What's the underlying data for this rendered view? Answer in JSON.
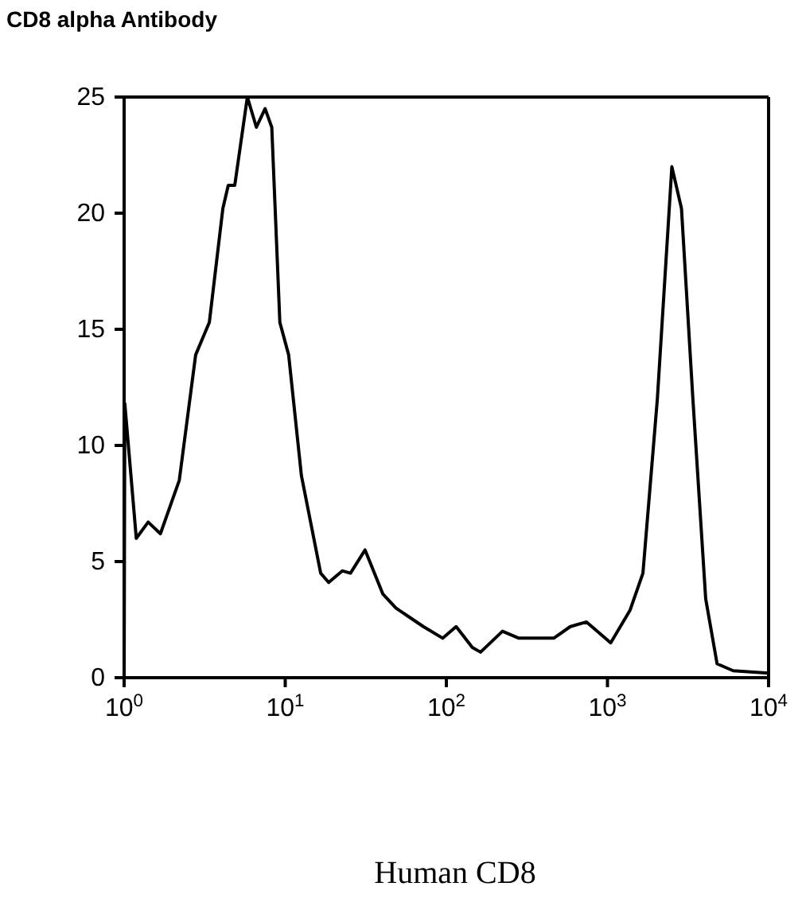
{
  "chart_data": {
    "type": "line",
    "title": "CD8 alpha Antibody",
    "xlabel": "Human CD8",
    "log": "x",
    "marker": "none",
    "line_style": "solid",
    "xlim": [
      1,
      10000
    ],
    "xticks": [
      {
        "value": 1,
        "label": "10$^{0}$"
      },
      {
        "value": 10,
        "label": "10$^{1}$"
      },
      {
        "value": 100,
        "label": "10$^{2}$"
      },
      {
        "value": 1000,
        "label": "10$^{3}$"
      },
      {
        "value": 10000,
        "label": "10$^{4}$"
      }
    ],
    "ylim": [
      0,
      25
    ],
    "yticks": [
      0,
      5,
      10,
      15,
      20,
      25
    ],
    "series": [
      {
        "color": "#000000",
        "x": [
          1,
          1.01,
          1.19,
          1.41,
          1.68,
          2.2,
          2.78,
          3.38,
          4.1,
          4.43,
          4.86,
          5.82,
          6.62,
          7.5,
          8.25,
          9.26,
          10.5,
          12.6,
          16.6,
          18.6,
          22.6,
          25.4,
          31.3,
          40.4,
          48.6,
          72,
          95,
          115,
          145,
          163,
          223,
          282,
          464,
          588,
          741,
          1047,
          1380,
          1660,
          2040,
          2510,
          2880,
          3390,
          4070,
          4790,
          6030,
          10000
        ],
        "values": [
          0,
          11.8,
          6.0,
          6.7,
          6.2,
          8.5,
          13.9,
          15.3,
          20.2,
          21.2,
          21.2,
          25.0,
          23.7,
          24.5,
          23.7,
          15.3,
          13.9,
          8.7,
          4.5,
          4.1,
          4.6,
          4.5,
          5.5,
          3.6,
          3.0,
          2.2,
          1.7,
          2.2,
          1.3,
          1.1,
          2.0,
          1.7,
          1.7,
          2.2,
          2.4,
          1.5,
          2.9,
          4.5,
          12.0,
          22.0,
          20.2,
          12.0,
          3.4,
          0.6,
          0.3,
          0.2
        ]
      }
    ]
  }
}
